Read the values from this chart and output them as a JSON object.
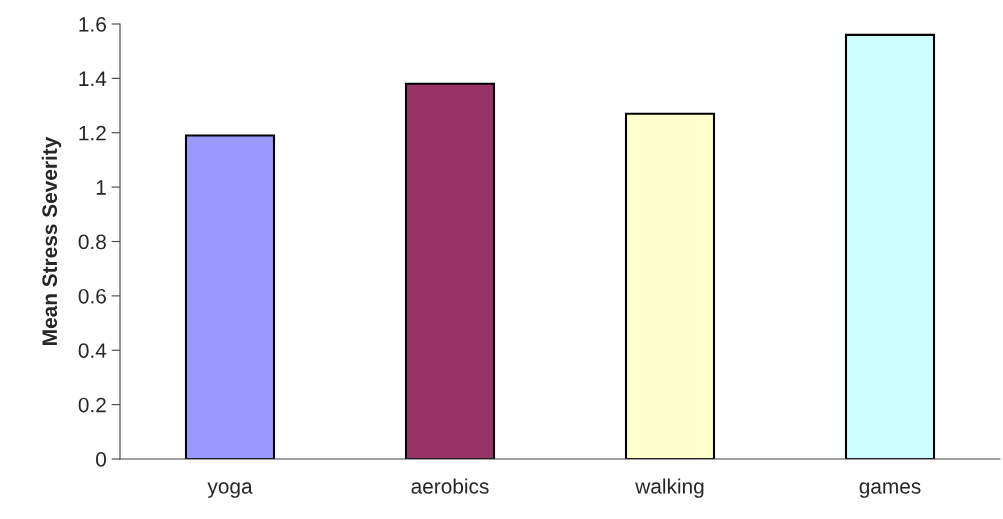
{
  "chart_data": {
    "type": "bar",
    "ylabel": "Mean Stress Severity",
    "categories": [
      "yoga",
      "aerobics",
      "walking",
      "games"
    ],
    "values": [
      1.19,
      1.38,
      1.27,
      1.56
    ],
    "colors": [
      "#9999ff",
      "#993366",
      "#ffffcc",
      "#ccffff"
    ],
    "ylim": [
      0,
      1.6
    ],
    "yticks": [
      0,
      0.2,
      0.4,
      0.6,
      0.8,
      1,
      1.2,
      1.4,
      1.6
    ],
    "grid": false
  }
}
